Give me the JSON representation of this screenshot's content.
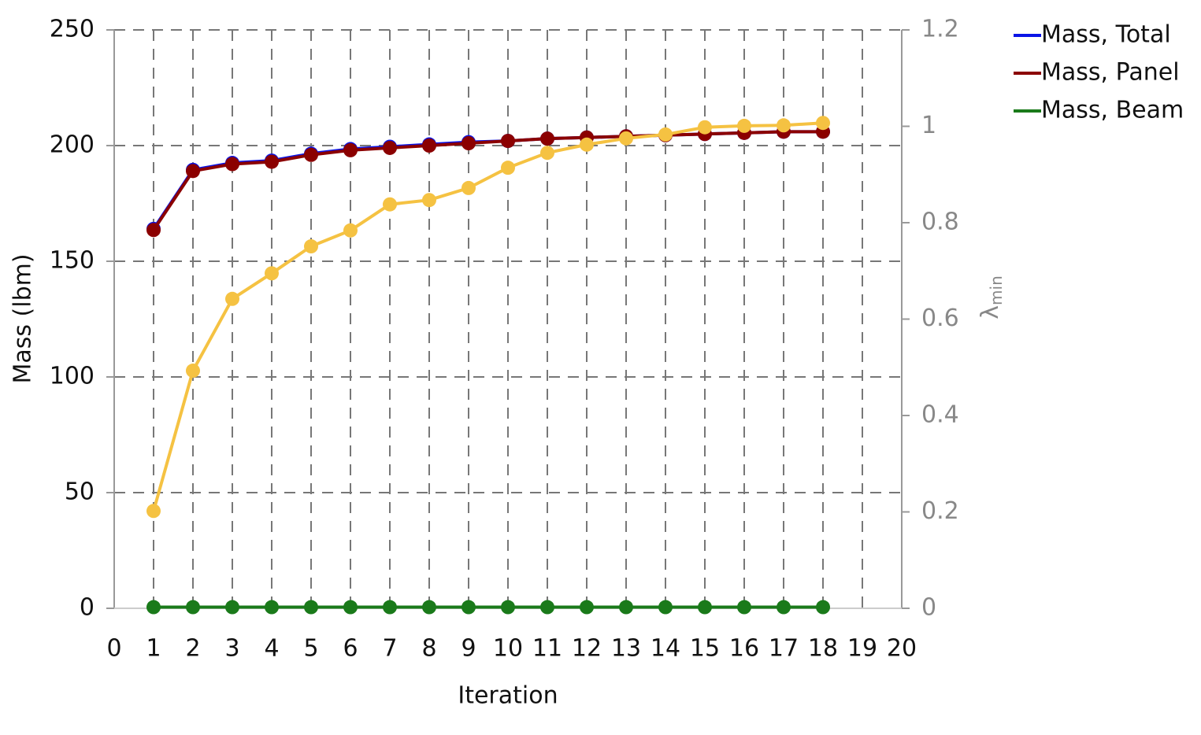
{
  "chart_data": {
    "type": "line",
    "x_label": "Iteration",
    "y_label": "Mass (lbm)",
    "y2_label": {
      "text": "λ",
      "subscript": "min"
    },
    "x": [
      1,
      2,
      3,
      4,
      5,
      6,
      7,
      8,
      9,
      10,
      11,
      12,
      13,
      14,
      15,
      16,
      17,
      18
    ],
    "series": [
      {
        "name": "Mass, Total",
        "color": "#0a14e6",
        "values": [
          164,
          189.5,
          192.5,
          193.5,
          196.5,
          198.5,
          199.5,
          200.5,
          201.5,
          202,
          203,
          203.5,
          204,
          204.5,
          205,
          205.5,
          206,
          206
        ]
      },
      {
        "name": "Mass, Panel",
        "color": "#8b0000",
        "values": [
          163.5,
          189,
          192,
          193,
          196,
          198,
          199,
          200,
          201,
          202,
          203,
          203.5,
          204,
          204.5,
          205,
          205.5,
          206,
          206
        ]
      },
      {
        "name": "Mass, Beam",
        "color": "#1a7a1a",
        "values": [
          0.5,
          0.5,
          0.5,
          0.5,
          0.5,
          0.5,
          0.5,
          0.5,
          0.5,
          0.5,
          0.5,
          0.5,
          0.5,
          0.5,
          0.5,
          0.5,
          0.5,
          0.5
        ]
      },
      {
        "color": "#f5c242",
        "axis": "y2",
        "values": [
          0.202,
          0.493,
          0.642,
          0.695,
          0.751,
          0.784,
          0.838,
          0.847,
          0.872,
          0.914,
          0.945,
          0.962,
          0.975,
          0.983,
          0.998,
          1.001,
          1.002,
          1.007
        ]
      }
    ],
    "xlim": [
      0,
      20
    ],
    "xticks": [
      0,
      1,
      2,
      3,
      4,
      5,
      6,
      7,
      8,
      9,
      10,
      11,
      12,
      13,
      14,
      15,
      16,
      17,
      18,
      19,
      20
    ],
    "ylim": [
      0,
      250
    ],
    "yticks": [
      0,
      50,
      100,
      150,
      200,
      250
    ],
    "y2lim": [
      0,
      1.2
    ],
    "y2ticks": [
      0,
      0.2,
      0.4,
      0.6,
      0.8,
      1,
      1.2
    ],
    "grid": true,
    "legend": "top-right"
  }
}
